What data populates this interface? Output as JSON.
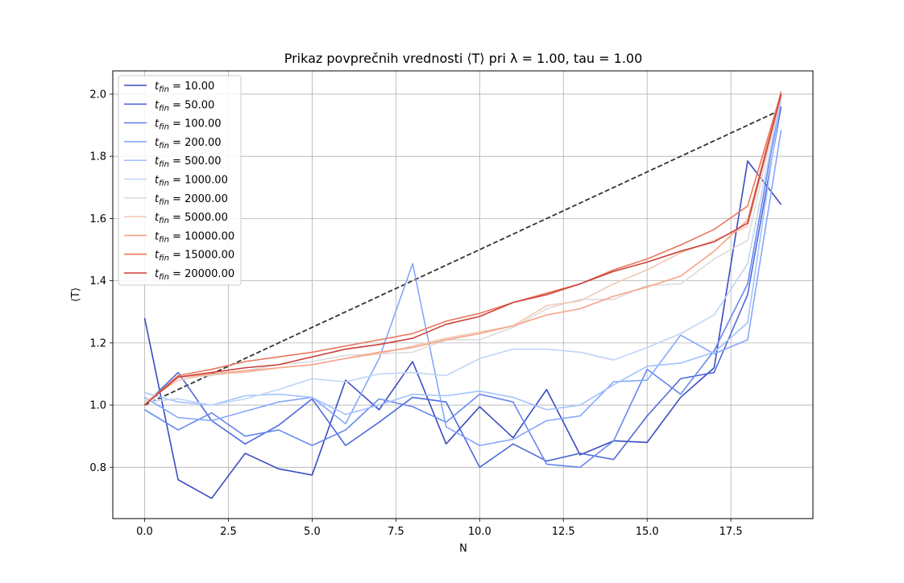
{
  "chart_data": {
    "type": "line",
    "title": "Prikaz povprečnih vrednosti ⟨T⟩ pri λ = 1.00, tau = 1.00",
    "xlabel": "N",
    "ylabel": "⟨T⟩",
    "xlim": [
      -0.95,
      19.95
    ],
    "ylim": [
      0.635,
      2.075
    ],
    "xticks": [
      0,
      2.5,
      5,
      7.5,
      10,
      12.5,
      15,
      17.5
    ],
    "xtick_labels": [
      "0.0",
      "2.5",
      "5.0",
      "7.5",
      "10.0",
      "12.5",
      "15.0",
      "17.5"
    ],
    "yticks": [
      0.8,
      1.0,
      1.2,
      1.4,
      1.6,
      1.8,
      2.0
    ],
    "ytick_labels": [
      "0.8",
      "1.0",
      "1.2",
      "1.4",
      "1.6",
      "1.8",
      "2.0"
    ],
    "grid": true,
    "legend_position": "top-left",
    "x": [
      0,
      1,
      2,
      3,
      4,
      5,
      6,
      7,
      8,
      9,
      10,
      11,
      12,
      13,
      14,
      15,
      16,
      17,
      18,
      19
    ],
    "series": [
      {
        "name": "t_fin = 10.00",
        "color": "#3b4cc0",
        "values": [
          1.28,
          0.76,
          0.7,
          0.845,
          0.795,
          0.775,
          1.08,
          0.985,
          1.14,
          0.875,
          0.995,
          0.895,
          1.05,
          0.84,
          0.885,
          0.88,
          1.025,
          1.12,
          1.785,
          1.645
        ]
      },
      {
        "name": "t_fin = 50.00",
        "color": "#4f69d9",
        "values": [
          1.0,
          1.105,
          0.95,
          0.875,
          0.935,
          1.02,
          0.87,
          0.945,
          1.025,
          1.01,
          0.8,
          0.875,
          0.82,
          0.845,
          0.825,
          0.965,
          1.085,
          1.105,
          1.355,
          1.96
        ]
      },
      {
        "name": "t_fin = 100.00",
        "color": "#6788ee",
        "values": [
          0.985,
          0.92,
          0.975,
          0.9,
          0.92,
          0.87,
          0.92,
          1.02,
          0.995,
          0.945,
          1.035,
          1.01,
          0.81,
          0.8,
          0.885,
          1.115,
          1.035,
          1.175,
          1.39,
          1.995
        ]
      },
      {
        "name": "t_fin = 200.00",
        "color": "#84a7fc",
        "values": [
          1.025,
          0.96,
          0.95,
          0.98,
          1.01,
          1.025,
          0.94,
          1.15,
          1.455,
          0.93,
          0.87,
          0.89,
          0.95,
          0.965,
          1.075,
          1.08,
          1.225,
          1.165,
          1.21,
          1.885
        ]
      },
      {
        "name": "t_fin = 500.00",
        "color": "#a3c2fe",
        "values": [
          1.04,
          1.01,
          1.0,
          1.03,
          1.035,
          1.025,
          0.97,
          1.0,
          1.035,
          1.03,
          1.045,
          1.025,
          0.985,
          1.0,
          1.065,
          1.125,
          1.135,
          1.17,
          1.265,
          1.99
        ]
      },
      {
        "name": "t_fin = 1000.00",
        "color": "#c0d4f5",
        "values": [
          1.01,
          1.02,
          1.0,
          1.02,
          1.05,
          1.085,
          1.075,
          1.1,
          1.105,
          1.095,
          1.15,
          1.18,
          1.18,
          1.17,
          1.145,
          1.185,
          1.23,
          1.29,
          1.455,
          1.995
        ]
      },
      {
        "name": "t_fin = 2000.00",
        "color": "#dddcdc",
        "values": [
          1.0,
          1.09,
          1.095,
          1.11,
          1.13,
          1.14,
          1.16,
          1.165,
          1.17,
          1.21,
          1.21,
          1.25,
          1.31,
          1.34,
          1.34,
          1.385,
          1.39,
          1.47,
          1.53,
          2.0
        ]
      },
      {
        "name": "t_fin = 5000.00",
        "color": "#f2c9b4",
        "values": [
          1.01,
          1.08,
          1.1,
          1.105,
          1.12,
          1.13,
          1.15,
          1.165,
          1.19,
          1.215,
          1.235,
          1.255,
          1.32,
          1.335,
          1.39,
          1.435,
          1.49,
          1.53,
          1.575,
          1.995
        ]
      },
      {
        "name": "t_fin = 10000.00",
        "color": "#f6a385",
        "values": [
          1.0,
          1.09,
          1.1,
          1.11,
          1.12,
          1.13,
          1.15,
          1.17,
          1.185,
          1.21,
          1.23,
          1.255,
          1.29,
          1.31,
          1.35,
          1.38,
          1.415,
          1.495,
          1.595,
          2.01
        ]
      },
      {
        "name": "t_fin = 15000.00",
        "color": "#e9785d",
        "values": [
          1.0,
          1.095,
          1.115,
          1.14,
          1.155,
          1.17,
          1.19,
          1.21,
          1.23,
          1.27,
          1.295,
          1.33,
          1.36,
          1.39,
          1.435,
          1.47,
          1.515,
          1.565,
          1.64,
          2.005
        ]
      },
      {
        "name": "t_fin = 20000.00",
        "color": "#cc403a",
        "values": [
          1.0,
          1.09,
          1.105,
          1.12,
          1.13,
          1.155,
          1.18,
          1.195,
          1.215,
          1.26,
          1.285,
          1.33,
          1.355,
          1.39,
          1.43,
          1.46,
          1.495,
          1.525,
          1.585,
          2.0
        ]
      }
    ],
    "reference_line": {
      "color": "#333333",
      "style": "dashed",
      "x": [
        0,
        19
      ],
      "y": [
        1.0,
        1.95
      ]
    }
  }
}
